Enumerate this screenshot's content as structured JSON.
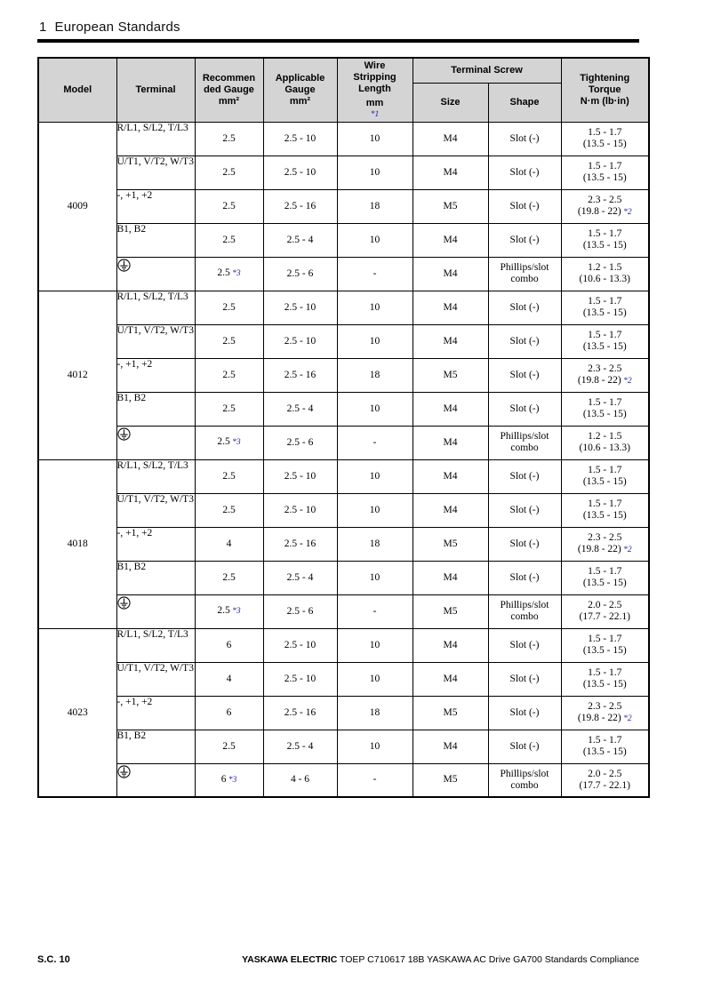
{
  "page": {
    "section_number": "1",
    "section_name": "European Standards",
    "footer": {
      "page_label": "S.C. 10",
      "brand": "YASKAWA ELECTRIC",
      "doc_info": "TOEP C710617 18B YASKAWA AC Drive GA700 Standards Compliance"
    }
  },
  "colors": {
    "header_bg": "#d4d4d4",
    "note_blue": "#2323c8",
    "border": "#000000"
  },
  "table": {
    "headers": {
      "model": "Model",
      "terminal": "Terminal",
      "recommended_lines": [
        "Recommen",
        "ded Gauge",
        "mm²"
      ],
      "applicable_lines": [
        "Applicable",
        "Gauge",
        "mm²"
      ],
      "wire_lines": [
        "Wire",
        "Stripping",
        "Length",
        "mm"
      ],
      "wire_note": "*1",
      "terminal_screw": "Terminal Screw",
      "size": "Size",
      "shape": "Shape",
      "torque_lines": [
        "Tightening",
        "Torque",
        "N·m (lb·in)"
      ]
    },
    "ground_symbol_name": "protective-earth",
    "models": [
      {
        "model": "4009",
        "rows": [
          {
            "terminal": "R/L1, S/L2, T/L3",
            "recommended": "2.5",
            "recommended_note": "",
            "applicable": "2.5 - 10",
            "strip": "10",
            "size": "M4",
            "shape": "Slot (-)",
            "torque1": "1.5 - 1.7",
            "torque2": "(13.5 - 15)",
            "torque_note": ""
          },
          {
            "terminal": "U/T1, V/T2, W/T3",
            "recommended": "2.5",
            "recommended_note": "",
            "applicable": "2.5 - 10",
            "strip": "10",
            "size": "M4",
            "shape": "Slot (-)",
            "torque1": "1.5 - 1.7",
            "torque2": "(13.5 - 15)",
            "torque_note": ""
          },
          {
            "terminal": "-, +1, +2",
            "recommended": "2.5",
            "recommended_note": "",
            "applicable": "2.5 - 16",
            "strip": "18",
            "size": "M5",
            "shape": "Slot (-)",
            "torque1": "2.3 - 2.5",
            "torque2": "(19.8 - 22)",
            "torque_note": "*2"
          },
          {
            "terminal": "B1, B2",
            "recommended": "2.5",
            "recommended_note": "",
            "applicable": "2.5 - 4",
            "strip": "10",
            "size": "M4",
            "shape": "Slot (-)",
            "torque1": "1.5 - 1.7",
            "torque2": "(13.5 - 15)",
            "torque_note": ""
          },
          {
            "terminal": "",
            "is_ground": true,
            "terminal_icon": "protective-earth",
            "recommended": "2.5",
            "recommended_note": "*3",
            "applicable": "2.5 - 6",
            "strip": "-",
            "size": "M4",
            "shape": "Phillips/slot combo",
            "torque1": "1.2 - 1.5",
            "torque2": "(10.6 - 13.3)",
            "torque_note": ""
          }
        ]
      },
      {
        "model": "4012",
        "rows": [
          {
            "terminal": "R/L1, S/L2, T/L3",
            "recommended": "2.5",
            "recommended_note": "",
            "applicable": "2.5 - 10",
            "strip": "10",
            "size": "M4",
            "shape": "Slot (-)",
            "torque1": "1.5 - 1.7",
            "torque2": "(13.5 - 15)",
            "torque_note": ""
          },
          {
            "terminal": "U/T1, V/T2, W/T3",
            "recommended": "2.5",
            "recommended_note": "",
            "applicable": "2.5 - 10",
            "strip": "10",
            "size": "M4",
            "shape": "Slot (-)",
            "torque1": "1.5 - 1.7",
            "torque2": "(13.5 - 15)",
            "torque_note": ""
          },
          {
            "terminal": "-, +1, +2",
            "recommended": "2.5",
            "recommended_note": "",
            "applicable": "2.5 - 16",
            "strip": "18",
            "size": "M5",
            "shape": "Slot (-)",
            "torque1": "2.3 - 2.5",
            "torque2": "(19.8 - 22)",
            "torque_note": "*2"
          },
          {
            "terminal": "B1, B2",
            "recommended": "2.5",
            "recommended_note": "",
            "applicable": "2.5 - 4",
            "strip": "10",
            "size": "M4",
            "shape": "Slot (-)",
            "torque1": "1.5 - 1.7",
            "torque2": "(13.5 - 15)",
            "torque_note": ""
          },
          {
            "terminal": "",
            "is_ground": true,
            "terminal_icon": "protective-earth",
            "recommended": "2.5",
            "recommended_note": "*3",
            "applicable": "2.5 - 6",
            "strip": "-",
            "size": "M4",
            "shape": "Phillips/slot combo",
            "torque1": "1.2 - 1.5",
            "torque2": "(10.6 - 13.3)",
            "torque_note": ""
          }
        ]
      },
      {
        "model": "4018",
        "rows": [
          {
            "terminal": "R/L1, S/L2, T/L3",
            "recommended": "2.5",
            "recommended_note": "",
            "applicable": "2.5 - 10",
            "strip": "10",
            "size": "M4",
            "shape": "Slot (-)",
            "torque1": "1.5 - 1.7",
            "torque2": "(13.5 - 15)",
            "torque_note": ""
          },
          {
            "terminal": "U/T1, V/T2, W/T3",
            "recommended": "2.5",
            "recommended_note": "",
            "applicable": "2.5 - 10",
            "strip": "10",
            "size": "M4",
            "shape": "Slot (-)",
            "torque1": "1.5 - 1.7",
            "torque2": "(13.5 - 15)",
            "torque_note": ""
          },
          {
            "terminal": "-, +1, +2",
            "recommended": "4",
            "recommended_note": "",
            "applicable": "2.5 - 16",
            "strip": "18",
            "size": "M5",
            "shape": "Slot (-)",
            "torque1": "2.3 - 2.5",
            "torque2": "(19.8 - 22)",
            "torque_note": "*2"
          },
          {
            "terminal": "B1, B2",
            "recommended": "2.5",
            "recommended_note": "",
            "applicable": "2.5 - 4",
            "strip": "10",
            "size": "M4",
            "shape": "Slot (-)",
            "torque1": "1.5 - 1.7",
            "torque2": "(13.5 - 15)",
            "torque_note": ""
          },
          {
            "terminal": "",
            "is_ground": true,
            "terminal_icon": "protective-earth",
            "recommended": "2.5",
            "recommended_note": "*3",
            "applicable": "2.5 - 6",
            "strip": "-",
            "size": "M5",
            "shape": "Phillips/slot combo",
            "torque1": "2.0 - 2.5",
            "torque2": "(17.7 - 22.1)",
            "torque_note": ""
          }
        ]
      },
      {
        "model": "4023",
        "rows": [
          {
            "terminal": "R/L1, S/L2, T/L3",
            "recommended": "6",
            "recommended_note": "",
            "applicable": "2.5 - 10",
            "strip": "10",
            "size": "M4",
            "shape": "Slot (-)",
            "torque1": "1.5 - 1.7",
            "torque2": "(13.5 - 15)",
            "torque_note": ""
          },
          {
            "terminal": "U/T1, V/T2, W/T3",
            "recommended": "4",
            "recommended_note": "",
            "applicable": "2.5 - 10",
            "strip": "10",
            "size": "M4",
            "shape": "Slot (-)",
            "torque1": "1.5 - 1.7",
            "torque2": "(13.5 - 15)",
            "torque_note": ""
          },
          {
            "terminal": "-, +1, +2",
            "recommended": "6",
            "recommended_note": "",
            "applicable": "2.5 - 16",
            "strip": "18",
            "size": "M5",
            "shape": "Slot (-)",
            "torque1": "2.3 - 2.5",
            "torque2": "(19.8 - 22)",
            "torque_note": "*2"
          },
          {
            "terminal": "B1, B2",
            "recommended": "2.5",
            "recommended_note": "",
            "applicable": "2.5 - 4",
            "strip": "10",
            "size": "M4",
            "shape": "Slot (-)",
            "torque1": "1.5 - 1.7",
            "torque2": "(13.5 - 15)",
            "torque_note": ""
          },
          {
            "terminal": "",
            "is_ground": true,
            "terminal_icon": "protective-earth",
            "recommended": "6",
            "recommended_note": "*3",
            "applicable": "4 - 6",
            "strip": "-",
            "size": "M5",
            "shape": "Phillips/slot combo",
            "torque1": "2.0 - 2.5",
            "torque2": "(17.7 - 22.1)",
            "torque_note": ""
          }
        ]
      }
    ]
  }
}
